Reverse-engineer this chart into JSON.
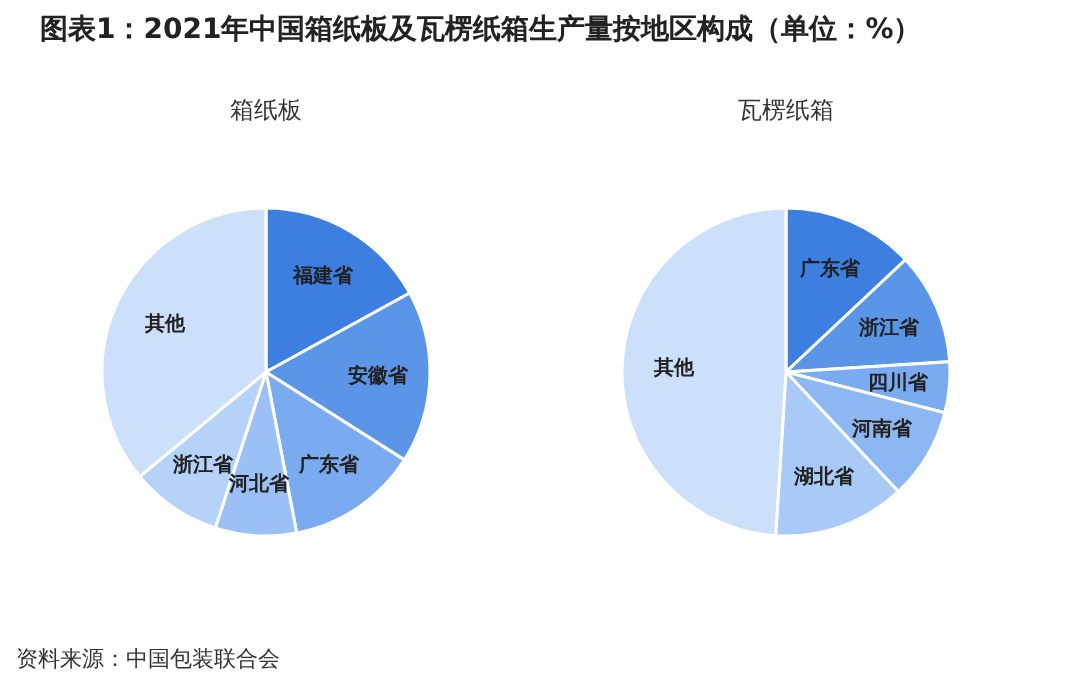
{
  "chart_data": [
    {
      "type": "pie",
      "title": "图表1：2021年中国箱纸板及瓦楞纸箱生产量按地区构成（单位：%）",
      "subtitle": "箱纸板",
      "categories": [
        "福建省",
        "安徽省",
        "广东省",
        "河北省",
        "浙江省",
        "其他"
      ],
      "values": [
        17,
        17,
        13,
        8,
        9,
        36
      ],
      "colors": [
        "#3d7fe0",
        "#5b95e8",
        "#7aaaf0",
        "#9ac0f5",
        "#b5d2f8",
        "#cde0fb"
      ],
      "annotations": [
        "资料来源：中国包装联合会"
      ]
    },
    {
      "type": "pie",
      "subtitle": "瓦楞纸箱",
      "categories": [
        "广东省",
        "浙江省",
        "四川省",
        "河南省",
        "湖北省",
        "其他"
      ],
      "values": [
        13,
        11,
        5,
        9,
        13,
        49
      ],
      "colors": [
        "#3d7fe0",
        "#5b95e8",
        "#7aaaf0",
        "#8db7f2",
        "#a9c9f6",
        "#cde0fb"
      ]
    }
  ]
}
